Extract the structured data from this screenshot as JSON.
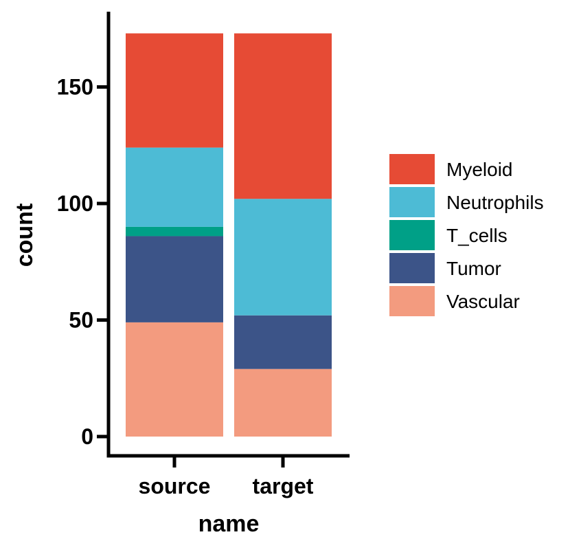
{
  "chart_data": {
    "type": "bar",
    "stacked": true,
    "categories": [
      "source",
      "target"
    ],
    "series": [
      {
        "name": "Vascular",
        "color": "#F39B7F",
        "values": [
          49,
          29
        ]
      },
      {
        "name": "Tumor",
        "color": "#3C5488",
        "values": [
          37,
          23
        ]
      },
      {
        "name": "T_cells",
        "color": "#00A087",
        "values": [
          4,
          0
        ]
      },
      {
        "name": "Neutrophils",
        "color": "#4DBBD5",
        "values": [
          34,
          50
        ]
      },
      {
        "name": "Myeloid",
        "color": "#E64B35",
        "values": [
          49,
          71
        ]
      }
    ],
    "legend_order": [
      "Myeloid",
      "Neutrophils",
      "T_cells",
      "Tumor",
      "Vascular"
    ],
    "legend_position": "right",
    "xlabel": "name",
    "ylabel": "count",
    "ylim": [
      0,
      173
    ],
    "yticks": [
      0,
      50,
      100,
      150
    ],
    "ytick_labels": [
      "0",
      "50",
      "100",
      "150"
    ],
    "grid": false
  }
}
